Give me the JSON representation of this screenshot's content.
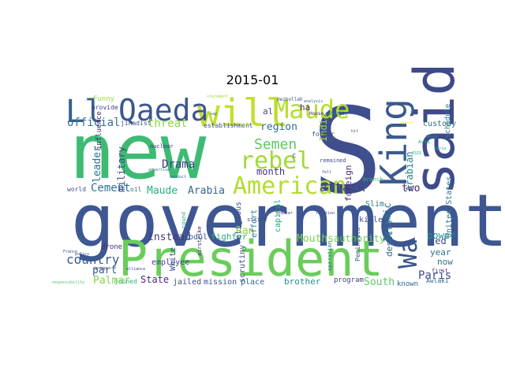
{
  "title": "2015-01",
  "words": [
    {
      "text": "new",
      "color": "#3dbb73"
    },
    {
      "text": "government",
      "color": "#3e5793"
    },
    {
      "text": "President",
      "color": "#6acd5b"
    },
    {
      "text": "S",
      "color": "#3f4f8d"
    },
    {
      "text": "said",
      "color": "#3e4a89"
    },
    {
      "text": "King",
      "color": "#3b5a8d"
    },
    {
      "text": "will",
      "color": "#c1df2c"
    },
    {
      "text": "Qaeda",
      "color": "#3d568e"
    },
    {
      "text": "Maude",
      "color": "#b4de2c"
    },
    {
      "text": "Ll",
      "color": "#35608d"
    },
    {
      "text": "American",
      "color": "#b1dd2e"
    },
    {
      "text": "rebel",
      "color": "#a2da37"
    },
    {
      "text": "Wa",
      "color": "#3a548c"
    },
    {
      "text": "Semen",
      "color": "#5ec962"
    },
    {
      "text": "country",
      "color": "#3a5a8c"
    },
    {
      "text": "attack",
      "color": "#404587"
    },
    {
      "text": "Drama",
      "color": "#433e85"
    },
    {
      "text": "Paris",
      "color": "#3e4989"
    },
    {
      "text": "official",
      "color": "#35708e"
    },
    {
      "text": "threat",
      "color": "#8fd744"
    },
    {
      "text": "region",
      "color": "#2e6e8e"
    },
    {
      "text": "month",
      "color": "#46337e"
    },
    {
      "text": "Cement",
      "color": "#2c728e"
    },
    {
      "text": "Maude",
      "color": "#28ae80"
    },
    {
      "text": "Arabia",
      "color": "#31688e"
    },
    {
      "text": "leader",
      "color": "#2d718e"
    },
    {
      "text": "military",
      "color": "#3e4a89"
    },
    {
      "text": "part",
      "color": "#31668e"
    },
    {
      "text": "Palmar",
      "color": "#84d44b"
    },
    {
      "text": "instead",
      "color": "#453781"
    },
    {
      "text": "Abdul",
      "color": "#34618d"
    },
    {
      "text": "fighter",
      "color": "#2ab07f"
    },
    {
      "text": "State",
      "color": "#472d7b"
    },
    {
      "text": "jailed",
      "color": "#3e4989"
    },
    {
      "text": "mission",
      "color": "#3b528b"
    },
    {
      "text": "place",
      "color": "#31668e"
    },
    {
      "text": "brother",
      "color": "#21918c"
    },
    {
      "text": "program",
      "color": "#414487"
    },
    {
      "text": "South",
      "color": "#5ec962"
    },
    {
      "text": "known",
      "color": "#33638d"
    },
    {
      "text": "Mouths",
      "color": "#79d151"
    },
    {
      "text": "authority",
      "color": "#6ccd5a"
    },
    {
      "text": "Arabian",
      "color": "#25858e"
    },
    {
      "text": "two",
      "color": "#482576"
    },
    {
      "text": "Ran",
      "color": "#8bd646"
    },
    {
      "text": "India",
      "color": "#a0da39"
    },
    {
      "text": "foreign",
      "color": "#482878"
    },
    {
      "text": "killed",
      "color": "#3b528b"
    },
    {
      "text": "Islamic",
      "color": "#2a768e"
    },
    {
      "text": "despite",
      "color": "#31688e"
    },
    {
      "text": "led",
      "color": "#3c4f8a"
    },
    {
      "text": "year",
      "color": "#2c728e"
    },
    {
      "text": "now",
      "color": "#2c718e"
    },
    {
      "text": "power",
      "color": "#21918c"
    },
    {
      "text": "United States",
      "color": "#2a788e"
    },
    {
      "text": "schedule",
      "color": "#2a788e"
    },
    {
      "text": "capital",
      "color": "#21a685"
    },
    {
      "text": "effort",
      "color": "#2b748e"
    },
    {
      "text": "religious",
      "color": "#3b528b"
    },
    {
      "text": "scrutiny",
      "color": "#3e4c8a"
    },
    {
      "text": "employee",
      "color": "#433d84"
    },
    {
      "text": "White",
      "color": "#3e4a89"
    },
    {
      "text": "Funny",
      "color": "#9bd93c"
    },
    {
      "text": "provide",
      "color": "#414487"
    },
    {
      "text": "jihadist",
      "color": "#3b528b"
    },
    {
      "text": "influence",
      "color": "#482475"
    },
    {
      "text": "world",
      "color": "#3a548c"
    },
    {
      "text": "oil",
      "color": "#2f6c8e"
    },
    {
      "text": "drone",
      "color": "#482878"
    },
    {
      "text": "joined",
      "color": "#29af7f"
    },
    {
      "text": "establishment",
      "color": "#3b528b"
    },
    {
      "text": "Slim",
      "color": "#2a788e"
    },
    {
      "text": "custody",
      "color": "#2c728e"
    },
    {
      "text": "al",
      "color": "#3f4889"
    },
    {
      "text": "ha",
      "color": "#482878"
    },
    {
      "text": "Peninsula",
      "color": "#3b528b"
    },
    {
      "text": "first",
      "color": "#46337e"
    },
    {
      "text": "Awlaki",
      "color": "#31688e"
    },
    {
      "text": "nuclear",
      "color": "#472a7a"
    },
    {
      "text": "former",
      "color": "#3f4889"
    },
    {
      "text": "remained",
      "color": "#3e4a89"
    },
    {
      "text": "operation",
      "color": "#2a788e"
    },
    {
      "text": "strike",
      "color": "#3e4989"
    },
    {
      "text": "round",
      "color": "#27ad81"
    },
    {
      "text": "Hezbollah",
      "color": "#3b528b"
    },
    {
      "text": "House",
      "color": "#482173"
    },
    {
      "text": "Charlie",
      "color": "#2a788e"
    },
    {
      "text": "airstrike",
      "color": "#482878"
    },
    {
      "text": "branch",
      "color": "#35b779"
    },
    {
      "text": "France",
      "color": "#3b528b"
    },
    {
      "text": "alliance",
      "color": "#3e4a89"
    },
    {
      "text": "greater",
      "color": "#472d7b"
    },
    {
      "text": "relation",
      "color": "#3e4989"
    },
    {
      "text": "responsibility",
      "color": "#4ec36b"
    },
    {
      "text": "lends",
      "color": "#b8de29"
    },
    {
      "text": "analysis",
      "color": "#31688e"
    },
    {
      "text": "policy",
      "color": "#3b528b"
    },
    {
      "text": "group",
      "color": "#472d7b"
    },
    {
      "text": "conduct",
      "color": "#31688e"
    },
    {
      "text": "statement",
      "color": "#a5db36"
    },
    {
      "text": "hit",
      "color": "#3b528b"
    },
    {
      "text": "advertise",
      "color": "#2a788e"
    },
    {
      "text": "Saudi",
      "color": "#21918c"
    },
    {
      "text": "opposed",
      "color": "#fde725"
    },
    {
      "text": "fell",
      "color": "#3f4889"
    },
    {
      "text": "say",
      "color": "#3b528b"
    },
    {
      "text": "Syria",
      "color": "#29af7f"
    },
    {
      "text": "ISIS",
      "color": "#22a884"
    },
    {
      "text": "Avid",
      "color": "#29af7f"
    },
    {
      "text": "c",
      "color": "#3e4989"
    }
  ]
}
